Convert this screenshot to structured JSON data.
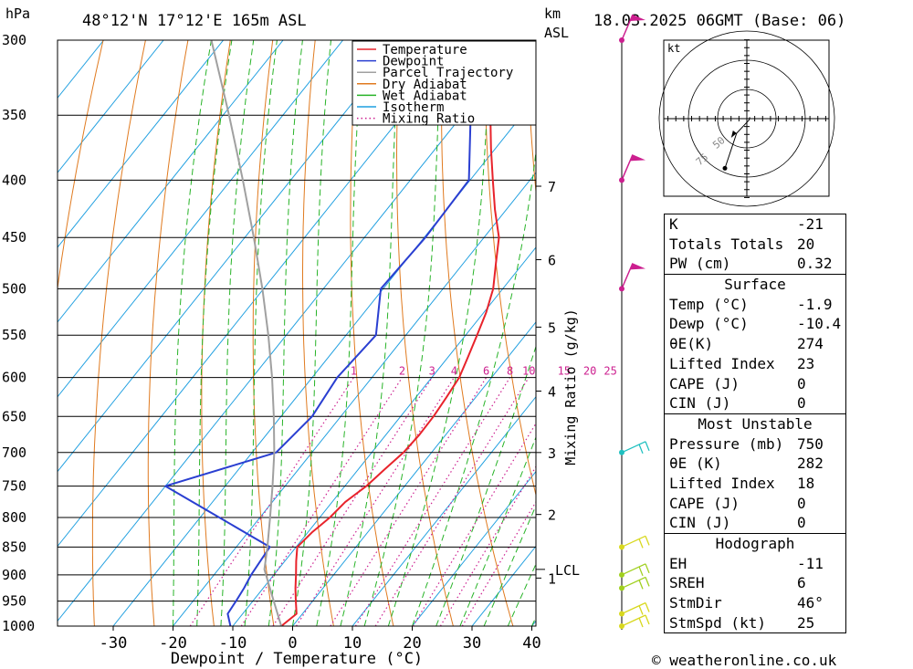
{
  "header": {
    "pressure_unit": "hPa",
    "location": "48°12'N  17°12'E  165m  ASL",
    "km_label": "km",
    "asl_label": "ASL",
    "datetime": "18.03.2025  06GMT  (Base: 06)"
  },
  "footer": {
    "copyright": "© weatheronline.co.uk"
  },
  "chart_data": {
    "type": "line",
    "xlabel": "Dewpoint / Temperature (°C)",
    "ylabel": "hPa",
    "mixing_ratio_label": "Mixing Ratio (g/kg)",
    "xlim": [
      -40,
      40
    ],
    "ylim": [
      1000,
      300
    ],
    "x_ticks": [
      -30,
      -20,
      -10,
      0,
      10,
      20,
      30,
      40
    ],
    "pressure_levels": [
      300,
      350,
      400,
      450,
      500,
      550,
      600,
      650,
      700,
      750,
      800,
      850,
      900,
      950,
      1000
    ],
    "km_ticks": [
      {
        "label": "7",
        "p": 405
      },
      {
        "label": "6",
        "p": 471
      },
      {
        "label": "5",
        "p": 541
      },
      {
        "label": "4",
        "p": 617
      },
      {
        "label": "3",
        "p": 700
      },
      {
        "label": "2",
        "p": 795
      },
      {
        "label": "1",
        "p": 906
      }
    ],
    "lcl": {
      "label": "LCL",
      "p": 890
    },
    "mixing_ratio_values": [
      "1",
      "2",
      "3",
      "4",
      "6",
      "8",
      "10",
      "15",
      "20",
      "25"
    ],
    "mixing_ratio_g_kg": [
      1,
      2,
      3,
      4,
      6,
      8,
      10,
      15,
      20,
      25
    ],
    "legend": [
      {
        "name": "Temperature",
        "color": "#e8232b",
        "style": "solid"
      },
      {
        "name": "Dewpoint",
        "color": "#2a3fd1",
        "style": "solid"
      },
      {
        "name": "Parcel Trajectory",
        "color": "#a0a0a0",
        "style": "solid"
      },
      {
        "name": "Dry Adiabat",
        "color": "#e07a1f",
        "style": "solid"
      },
      {
        "name": "Wet Adiabat",
        "color": "#27b327",
        "style": "solid"
      },
      {
        "name": "Isotherm",
        "color": "#1f9fe0",
        "style": "solid"
      },
      {
        "name": "Mixing Ratio",
        "color": "#cc1f8f",
        "style": "dotted"
      }
    ],
    "series": [
      {
        "name": "Temperature",
        "color": "#e8232b",
        "points": [
          [
            1000,
            -1.9
          ],
          [
            975,
            -1.0
          ],
          [
            950,
            -2.8
          ],
          [
            925,
            -4.6
          ],
          [
            900,
            -6.3
          ],
          [
            875,
            -8.1
          ],
          [
            850,
            -9.8
          ],
          [
            825,
            -9.3
          ],
          [
            800,
            -8.3
          ],
          [
            775,
            -7.8
          ],
          [
            750,
            -6.4
          ],
          [
            725,
            -5.6
          ],
          [
            700,
            -4.7
          ],
          [
            675,
            -4.4
          ],
          [
            650,
            -4.5
          ],
          [
            625,
            -4.9
          ],
          [
            600,
            -5.4
          ],
          [
            575,
            -6.7
          ],
          [
            550,
            -8.1
          ],
          [
            525,
            -9.6
          ],
          [
            500,
            -11.6
          ],
          [
            475,
            -14.5
          ],
          [
            450,
            -17.5
          ],
          [
            425,
            -21.9
          ],
          [
            400,
            -26.2
          ],
          [
            375,
            -30.7
          ],
          [
            350,
            -35.3
          ],
          [
            325,
            -40.1
          ],
          [
            300,
            -45.6
          ]
        ]
      },
      {
        "name": "Dewpoint",
        "color": "#2a3fd1",
        "points": [
          [
            1000,
            -10.4
          ],
          [
            975,
            -12.5
          ],
          [
            950,
            -12.8
          ],
          [
            925,
            -13.2
          ],
          [
            900,
            -13.8
          ],
          [
            875,
            -14.1
          ],
          [
            850,
            -14.4
          ],
          [
            800,
            -26.8
          ],
          [
            750,
            -40.0
          ],
          [
            700,
            -26.0
          ],
          [
            650,
            -24.8
          ],
          [
            600,
            -25.8
          ],
          [
            550,
            -25.0
          ],
          [
            500,
            -30.4
          ],
          [
            450,
            -29.8
          ],
          [
            400,
            -30.2
          ],
          [
            350,
            -38.6
          ],
          [
            300,
            -53.0
          ]
        ]
      },
      {
        "name": "Parcel Trajectory",
        "color": "#a0a0a0",
        "points": [
          [
            1000,
            -1.9
          ],
          [
            950,
            -6.5
          ],
          [
            890,
            -12.3
          ],
          [
            850,
            -14.8
          ],
          [
            800,
            -18.3
          ],
          [
            750,
            -22.1
          ],
          [
            700,
            -26.3
          ],
          [
            650,
            -31.2
          ],
          [
            600,
            -36.7
          ],
          [
            550,
            -43.0
          ],
          [
            500,
            -50.2
          ],
          [
            450,
            -58.5
          ],
          [
            400,
            -68.0
          ],
          [
            350,
            -79.0
          ],
          [
            300,
            -92.0
          ]
        ]
      }
    ],
    "wind_barbs": [
      {
        "p": 300,
        "color": "#cc1f8f",
        "label": "pennant"
      },
      {
        "p": 400,
        "color": "#cc1f8f",
        "label": "pennant"
      },
      {
        "p": 500,
        "color": "#cc1f8f",
        "label": "pennant"
      },
      {
        "p": 700,
        "color": "#1fc0c0",
        "label": "barbs"
      },
      {
        "p": 850,
        "color": "#d8d81f",
        "label": "barbs"
      },
      {
        "p": 900,
        "color": "#a0d01f",
        "label": "barbs"
      },
      {
        "p": 925,
        "color": "#a0d01f",
        "label": "barbs"
      },
      {
        "p": 975,
        "color": "#d8d81f",
        "label": "barbs"
      },
      {
        "p": 1000,
        "color": "#d8d81f",
        "label": "barbs"
      }
    ]
  },
  "hodograph": {
    "unit_label": "kt",
    "ring_labels": [
      "50",
      "75"
    ],
    "trace": [
      [
        1.0,
        0.5
      ],
      [
        0.8,
        -0.4
      ],
      [
        -3.5,
        -5.0
      ],
      [
        -7.5,
        -17.0
      ]
    ]
  },
  "indices": {
    "rows": [
      {
        "label": "K",
        "value": "-21"
      },
      {
        "label": "Totals Totals",
        "value": "20"
      },
      {
        "label": "PW (cm)",
        "value": "0.32"
      }
    ]
  },
  "surface": {
    "title": "Surface",
    "rows": [
      {
        "label": "Temp (°C)",
        "value": "-1.9"
      },
      {
        "label": "Dewp (°C)",
        "value": "-10.4"
      },
      {
        "label": "θE(K)",
        "value": "274"
      },
      {
        "label": "Lifted Index",
        "value": "23"
      },
      {
        "label": "CAPE (J)",
        "value": "0"
      },
      {
        "label": "CIN (J)",
        "value": "0"
      }
    ]
  },
  "most_unstable": {
    "title": "Most Unstable",
    "rows": [
      {
        "label": "Pressure (mb)",
        "value": "750"
      },
      {
        "label": "θE (K)",
        "value": "282"
      },
      {
        "label": "Lifted Index",
        "value": "18"
      },
      {
        "label": "CAPE (J)",
        "value": "0"
      },
      {
        "label": "CIN (J)",
        "value": "0"
      }
    ]
  },
  "hodograph_table": {
    "title": "Hodograph",
    "rows": [
      {
        "label": "EH",
        "value": "-11"
      },
      {
        "label": "SREH",
        "value": "6"
      },
      {
        "label": "StmDir",
        "value": "46°"
      },
      {
        "label": "StmSpd (kt)",
        "value": "25"
      }
    ]
  }
}
